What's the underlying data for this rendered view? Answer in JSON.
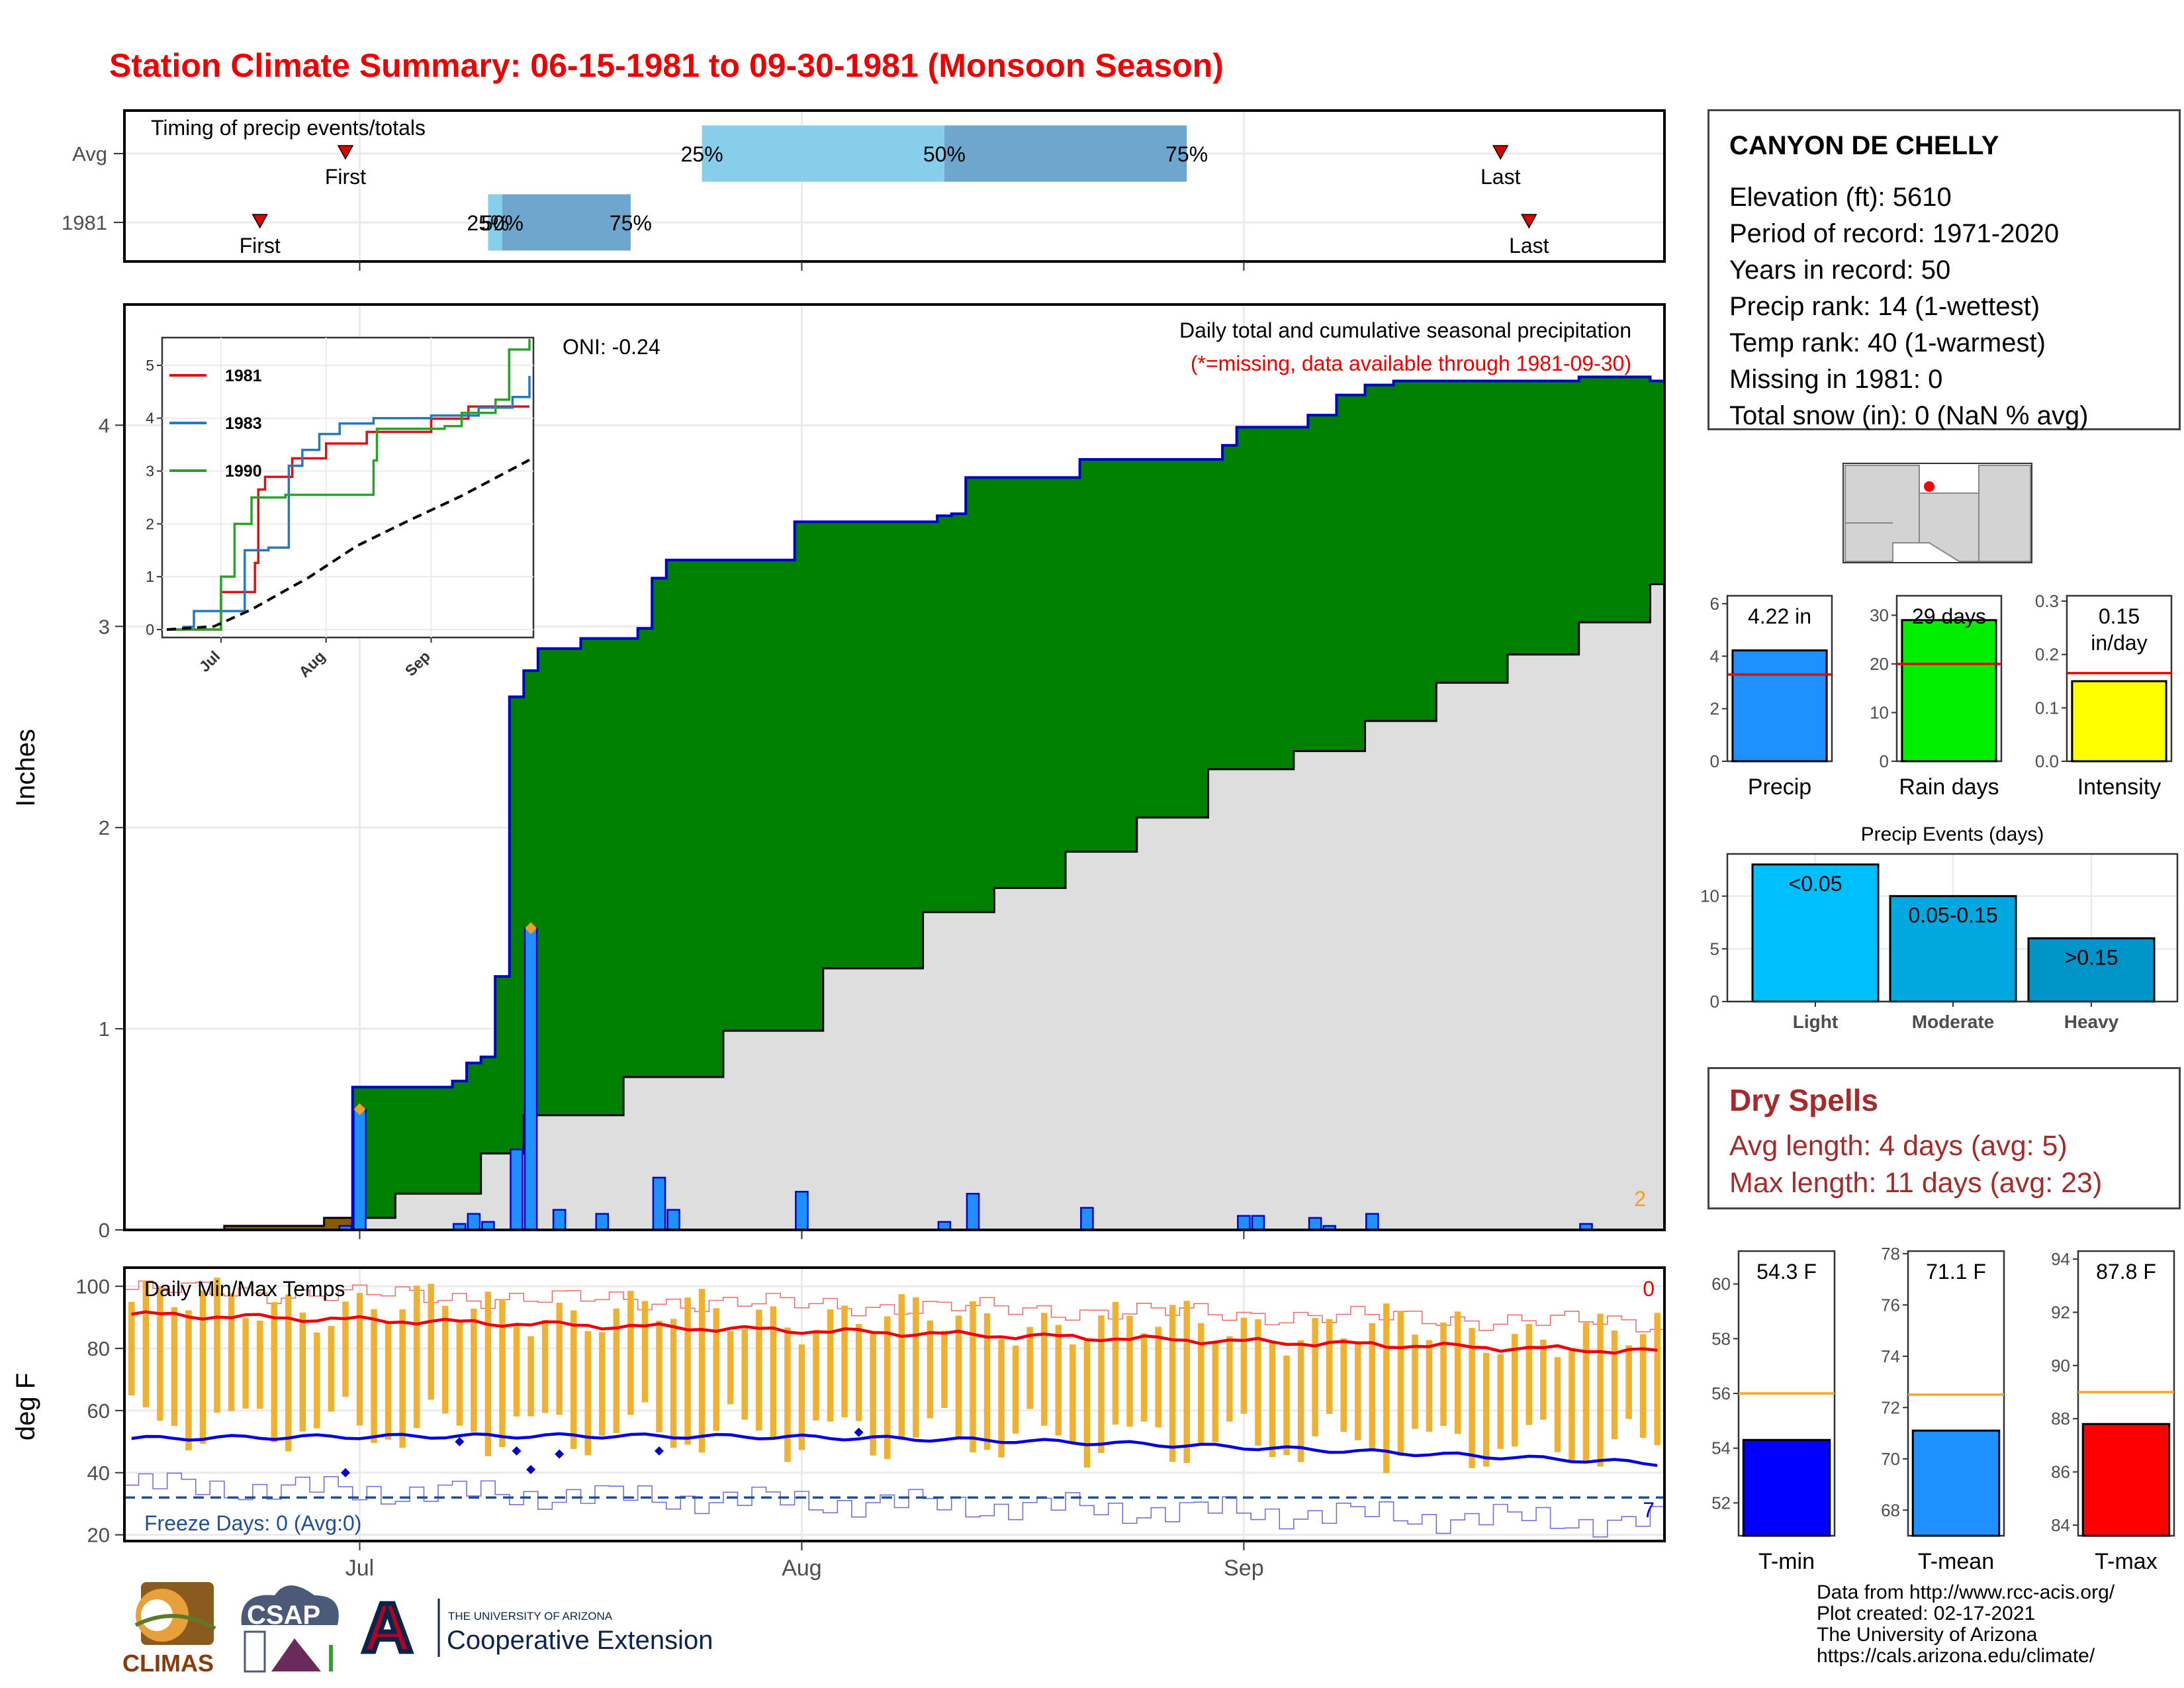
{
  "title": "Station Climate Summary: 06-15-1981 to 09-30-1981 (Monsoon Season)",
  "station": {
    "name": "CANYON DE CHELLY",
    "rows": [
      "Elevation (ft): 5610",
      "Period of record: 1971-2020",
      "Years in record: 50",
      "Precip rank: 14 (1-wettest)",
      "Temp rank: 40 (1-warmest)",
      "Missing in 1981: 0",
      "Total snow (in): 0 (NaN % avg)"
    ]
  },
  "dry_spells": {
    "heading": "Dry Spells",
    "avg": "Avg length: 4 days (avg: 5)",
    "max": "Max length: 11 days (avg: 23)"
  },
  "credits": [
    "Data from http://www.rcc-acis.org/",
    "Plot created: 02-17-2021",
    "The University of Arizona",
    "https://cals.arizona.edu/climate/"
  ],
  "logos": {
    "climas": "CLIMAS",
    "csap": "CSAP",
    "ua_small": "THE UNIVERSITY OF ARIZONA",
    "ua_big": "Cooperative Extension",
    "ua_letter": "A"
  },
  "colors": {
    "title": "#ee0000",
    "above_avg": "#008000",
    "below_avg": "#8b5a00",
    "normal_cum": "#dedede",
    "daily_bar": "#1e90ff",
    "precip_line": "#0000cc",
    "temp_bar": "#f0b030",
    "max_avg": "#ee0000",
    "min_avg": "#0000dd"
  },
  "chart_data": [
    {
      "id": "timing",
      "type": "bar",
      "title": "Timing of precip events/totals",
      "rows": [
        {
          "label": "Avg",
          "first": "1981-06-30",
          "p25": "1981-07-25",
          "p50": "1981-08-11",
          "p75": "1981-08-28",
          "last": "1981-09-19"
        },
        {
          "label": "1981",
          "first": "1981-06-24",
          "p25": "1981-07-10",
          "p50": "1981-07-11",
          "p75": "1981-07-20",
          "last": "1981-09-21"
        }
      ],
      "marker_labels": {
        "first": "First",
        "last": "Last",
        "p25": "25%",
        "p50": "50%",
        "p75": "75%"
      }
    },
    {
      "id": "precip",
      "type": "area",
      "title": "Daily total and cumulative seasonal precipitation",
      "subtitle": "(*=missing, data available through 1981-09-30)",
      "oni": "ONI: -0.24",
      "ylabel": "Inches",
      "ylim": [
        0,
        4.6
      ],
      "yticks": [
        0,
        1,
        2,
        3,
        4
      ],
      "xlim": [
        "1981-06-15",
        "1981-09-30"
      ],
      "xticks": [
        "Jul",
        "Aug",
        "Sep"
      ],
      "corner_note": "2",
      "cumulative_observed": [
        [
          "1981-06-15",
          0
        ],
        [
          "1981-06-30",
          0
        ],
        [
          "1981-07-01",
          0.71
        ],
        [
          "1981-07-07",
          0.71
        ],
        [
          "1981-07-08",
          0.74
        ],
        [
          "1981-07-09",
          0.83
        ],
        [
          "1981-07-10",
          0.86
        ],
        [
          "1981-07-11",
          1.26
        ],
        [
          "1981-07-12",
          2.65
        ],
        [
          "1981-07-13",
          2.78
        ],
        [
          "1981-07-14",
          2.89
        ],
        [
          "1981-07-17",
          2.94
        ],
        [
          "1981-07-21",
          2.99
        ],
        [
          "1981-07-22",
          3.24
        ],
        [
          "1981-07-23",
          3.33
        ],
        [
          "1981-08-01",
          3.52
        ],
        [
          "1981-08-11",
          3.55
        ],
        [
          "1981-08-12",
          3.56
        ],
        [
          "1981-08-13",
          3.74
        ],
        [
          "1981-08-21",
          3.83
        ],
        [
          "1981-08-31",
          3.9
        ],
        [
          "1981-09-01",
          3.99
        ],
        [
          "1981-09-06",
          4.05
        ],
        [
          "1981-09-08",
          4.15
        ],
        [
          "1981-09-10",
          4.2
        ],
        [
          "1981-09-12",
          4.22
        ],
        [
          "1981-09-25",
          4.24
        ],
        [
          "1981-09-30",
          4.22
        ]
      ],
      "cumulative_normal": [
        [
          "1981-06-15",
          0.0
        ],
        [
          "1981-06-22",
          0.02
        ],
        [
          "1981-06-29",
          0.06
        ],
        [
          "1981-07-04",
          0.18
        ],
        [
          "1981-07-10",
          0.38
        ],
        [
          "1981-07-13",
          0.57
        ],
        [
          "1981-07-20",
          0.76
        ],
        [
          "1981-07-27",
          0.99
        ],
        [
          "1981-08-03",
          1.3
        ],
        [
          "1981-08-10",
          1.58
        ],
        [
          "1981-08-15",
          1.7
        ],
        [
          "1981-08-20",
          1.88
        ],
        [
          "1981-08-25",
          2.05
        ],
        [
          "1981-08-30",
          2.29
        ],
        [
          "1981-09-05",
          2.38
        ],
        [
          "1981-09-10",
          2.53
        ],
        [
          "1981-09-15",
          2.72
        ],
        [
          "1981-09-20",
          2.86
        ],
        [
          "1981-09-25",
          3.02
        ],
        [
          "1981-09-30",
          3.21
        ]
      ],
      "daily": [
        [
          "1981-06-30",
          0.02
        ],
        [
          "1981-07-01",
          0.6
        ],
        [
          "1981-07-08",
          0.03
        ],
        [
          "1981-07-09",
          0.08
        ],
        [
          "1981-07-10",
          0.04
        ],
        [
          "1981-07-12",
          0.4
        ],
        [
          "1981-07-13",
          1.5
        ],
        [
          "1981-07-15",
          0.1
        ],
        [
          "1981-07-18",
          0.08
        ],
        [
          "1981-07-22",
          0.26
        ],
        [
          "1981-07-23",
          0.1
        ],
        [
          "1981-08-01",
          0.19
        ],
        [
          "1981-08-11",
          0.04
        ],
        [
          "1981-08-13",
          0.18
        ],
        [
          "1981-08-21",
          0.11
        ],
        [
          "1981-09-01",
          0.07
        ],
        [
          "1981-09-02",
          0.07
        ],
        [
          "1981-09-06",
          0.06
        ],
        [
          "1981-09-07",
          0.02
        ],
        [
          "1981-09-10",
          0.08
        ],
        [
          "1981-09-25",
          0.03
        ]
      ]
    },
    {
      "id": "inset",
      "type": "line",
      "ylim": [
        0,
        5.5
      ],
      "yticks": [
        0,
        1,
        2,
        3,
        4,
        5
      ],
      "xticks": [
        "Jul",
        "Aug",
        "Sep"
      ],
      "series": [
        {
          "name": "1981",
          "color": "#dd1111",
          "points": [
            [
              "1981-06-15",
              0
            ],
            [
              "1981-06-30",
              0
            ],
            [
              "1981-07-01",
              0.71
            ],
            [
              "1981-07-11",
              1.26
            ],
            [
              "1981-07-12",
              2.65
            ],
            [
              "1981-07-14",
              2.89
            ],
            [
              "1981-07-22",
              3.24
            ],
            [
              "1981-08-01",
              3.52
            ],
            [
              "1981-08-13",
              3.74
            ],
            [
              "1981-09-01",
              3.99
            ],
            [
              "1981-09-12",
              4.22
            ],
            [
              "1981-09-30",
              4.22
            ]
          ]
        },
        {
          "name": "1983",
          "color": "#2878c0",
          "points": [
            [
              "1981-06-15",
              0
            ],
            [
              "1981-06-20",
              0.05
            ],
            [
              "1981-06-23",
              0.35
            ],
            [
              "1981-07-01",
              0.35
            ],
            [
              "1981-07-08",
              1.5
            ],
            [
              "1981-07-15",
              1.55
            ],
            [
              "1981-07-21",
              3.1
            ],
            [
              "1981-07-25",
              3.4
            ],
            [
              "1981-07-30",
              3.7
            ],
            [
              "1981-08-05",
              3.9
            ],
            [
              "1981-08-15",
              4.0
            ],
            [
              "1981-09-01",
              4.05
            ],
            [
              "1981-09-15",
              4.2
            ],
            [
              "1981-09-25",
              4.4
            ],
            [
              "1981-09-30",
              4.8
            ]
          ]
        },
        {
          "name": "1990",
          "color": "#2aa22a",
          "points": [
            [
              "1981-06-15",
              0
            ],
            [
              "1981-06-27",
              0
            ],
            [
              "1981-07-01",
              1.0
            ],
            [
              "1981-07-05",
              2.0
            ],
            [
              "1981-07-10",
              2.5
            ],
            [
              "1981-07-20",
              2.55
            ],
            [
              "1981-08-10",
              2.55
            ],
            [
              "1981-08-15",
              3.2
            ],
            [
              "1981-08-16",
              3.8
            ],
            [
              "1981-09-05",
              3.85
            ],
            [
              "1981-09-10",
              4.1
            ],
            [
              "1981-09-20",
              4.35
            ],
            [
              "1981-09-24",
              5.3
            ],
            [
              "1981-09-30",
              5.5
            ]
          ]
        },
        {
          "name": "",
          "color": "#000000",
          "dashed": true,
          "points": [
            [
              "1981-06-15",
              0
            ],
            [
              "1981-06-29",
              0.06
            ],
            [
              "1981-07-10",
              0.38
            ],
            [
              "1981-07-27",
              0.99
            ],
            [
              "1981-08-10",
              1.58
            ],
            [
              "1981-08-25",
              2.05
            ],
            [
              "1981-09-10",
              2.53
            ],
            [
              "1981-09-30",
              3.21
            ]
          ]
        }
      ]
    },
    {
      "id": "temps",
      "type": "bar",
      "title": "Daily Min/Max Temps",
      "ylabel": "deg F",
      "ylim": [
        18,
        106
      ],
      "yticks": [
        20,
        40,
        60,
        80,
        100
      ],
      "xticks": [
        "Jul",
        "Aug",
        "Sep"
      ],
      "freeze_label": "Freeze Days: 0 (Avg:0)",
      "freeze_line": 32,
      "hot_count": "0",
      "cold_count": "7",
      "max_avg_start": 91,
      "max_avg_end": 79,
      "min_avg_start": 51,
      "min_avg_end": 43,
      "record_max_start": 99,
      "record_max_end": 88,
      "record_min_start": 36,
      "record_min_end": 24,
      "low_min_points": [
        [
          "1981-06-30",
          40
        ],
        [
          "1981-07-08",
          50
        ],
        [
          "1981-07-12",
          47
        ],
        [
          "1981-07-13",
          41
        ],
        [
          "1981-07-15",
          46
        ],
        [
          "1981-07-22",
          47
        ],
        [
          "1981-08-05",
          53
        ]
      ]
    },
    {
      "id": "totals",
      "type": "bar",
      "panels": [
        {
          "category": "Precip",
          "value": 4.22,
          "avg": 3.3,
          "label": "4.22 in",
          "ylim": [
            0,
            6.3
          ],
          "yticks": [
            0,
            2,
            4,
            6
          ],
          "color": "#1e90ff"
        },
        {
          "category": "Rain days",
          "value": 29,
          "avg": 20,
          "label": "29 days",
          "ylim": [
            0,
            34
          ],
          "yticks": [
            0,
            10,
            20,
            30
          ],
          "color": "#00ee00"
        },
        {
          "category": "Intensity",
          "value": 0.15,
          "avg": 0.165,
          "label": "0.15 in/day",
          "ylim": [
            0,
            0.31
          ],
          "yticks": [
            0.0,
            0.1,
            0.2,
            0.3
          ],
          "color": "#ffff00"
        }
      ]
    },
    {
      "id": "events",
      "type": "bar",
      "title": "Precip Events (days)",
      "categories": [
        "Light",
        "Moderate",
        "Heavy"
      ],
      "values": [
        13,
        10,
        6
      ],
      "bar_labels": [
        "<0.05",
        "0.05-0.15",
        ">0.15"
      ],
      "colors": [
        "#00bfff",
        "#00a8e0",
        "#0095c8"
      ],
      "ylim": [
        0,
        14
      ],
      "yticks": [
        0,
        5,
        10
      ]
    },
    {
      "id": "temp_summary",
      "type": "bar",
      "panels": [
        {
          "category": "T-min",
          "value": 54.3,
          "avg": 56.0,
          "label": "54.3 F",
          "ylim": [
            50.8,
            61.2
          ],
          "yticks": [
            52,
            54,
            56,
            58,
            60
          ],
          "color": "#0000ff"
        },
        {
          "category": "T-mean",
          "value": 71.1,
          "avg": 72.5,
          "label": "71.1 F",
          "ylim": [
            67.0,
            78.1
          ],
          "yticks": [
            68,
            70,
            72,
            74,
            76,
            78
          ],
          "color": "#1e90ff"
        },
        {
          "category": "T-max",
          "value": 87.8,
          "avg": 89.0,
          "label": "87.8 F",
          "ylim": [
            83.6,
            94.3
          ],
          "yticks": [
            84,
            86,
            88,
            90,
            92,
            94
          ],
          "color": "#ff0000"
        }
      ]
    },
    {
      "id": "locator_map",
      "type": "other",
      "region": "Arizona / Four Corners",
      "station_marker": "red-dot"
    }
  ]
}
